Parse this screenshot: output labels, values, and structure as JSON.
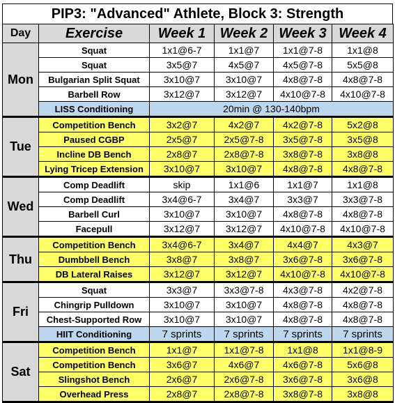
{
  "title": "PIP3: \"Advanced\" Athlete, Block 3: Strength",
  "headers": {
    "day": "Day",
    "exercise": "Exercise",
    "weeks": [
      "Week 1",
      "Week 2",
      "Week 3",
      "Week 4"
    ]
  },
  "colors": {
    "yellow_row": "#ffff66",
    "blue_row": "#bdd7ee",
    "header_gray": "#d9d9d9"
  },
  "days": [
    {
      "name": "Mon",
      "rows": [
        {
          "exercise": "Squat",
          "weeks": [
            "1x1@6-7",
            "1x1@7",
            "1x1@7-8",
            "1x1@8"
          ]
        },
        {
          "exercise": "Squat",
          "weeks": [
            "3x5@7",
            "4x5@7",
            "4x5@7-8",
            "5x5@8"
          ]
        },
        {
          "exercise": "Bulgarian Split Squat",
          "weeks": [
            "3x10@7",
            "3x10@7",
            "4x8@7-8",
            "4x8@7-8"
          ]
        },
        {
          "exercise": "Barbell Row",
          "weeks": [
            "3x12@7",
            "3x12@7",
            "4x10@7-8",
            "4x10@7-8"
          ]
        },
        {
          "exercise": "LISS Conditioning",
          "merged": "20min @ 130-140bpm",
          "style": "liss"
        }
      ]
    },
    {
      "name": "Tue",
      "rows": [
        {
          "exercise": "Competition Bench",
          "weeks": [
            "3x2@7",
            "4x2@7",
            "4x2@7-8",
            "5x2@8"
          ],
          "style": "yellow"
        },
        {
          "exercise": "Paused CGBP",
          "weeks": [
            "2x5@7",
            "2x5@7-8",
            "3x5@7-8",
            "3x5@8"
          ],
          "style": "yellow"
        },
        {
          "exercise": "Incline DB Bench",
          "weeks": [
            "2x8@7",
            "2x8@7-8",
            "3x8@7-8",
            "3x8@8"
          ],
          "style": "yellow"
        },
        {
          "exercise": "Lying Tricep Extension",
          "weeks": [
            "3x10@7",
            "3x10@7",
            "4x8@7-8",
            "4x8@7-8"
          ],
          "style": "yellow"
        }
      ]
    },
    {
      "name": "Wed",
      "rows": [
        {
          "exercise": "Comp Deadlift",
          "weeks": [
            "skip",
            "1x1@6",
            "1x1@7",
            "1x1@8"
          ]
        },
        {
          "exercise": "Comp Deadlift",
          "weeks": [
            "3x4@6-7",
            "3x4@7",
            "3x3@7",
            "3x3@7-8"
          ]
        },
        {
          "exercise": "Barbell Curl",
          "weeks": [
            "3x10@7",
            "3x10@7",
            "4x8@7-8",
            "4x8@7-8"
          ]
        },
        {
          "exercise": "Facepull",
          "weeks": [
            "3x12@7",
            "3x12@7",
            "4x10@7-8",
            "4x10@7-8"
          ]
        }
      ]
    },
    {
      "name": "Thu",
      "rows": [
        {
          "exercise": "Competition Bench",
          "weeks": [
            "3x4@6-7",
            "3x4@7",
            "4x4@7",
            "4x3@7"
          ],
          "style": "yellow"
        },
        {
          "exercise": "Dumbbell Bench",
          "weeks": [
            "3x8@7",
            "3x8@7",
            "3x6@7-8",
            "3x6@7-8"
          ],
          "style": "yellow"
        },
        {
          "exercise": "DB Lateral Raises",
          "weeks": [
            "3x12@7",
            "3x12@7",
            "4x10@7-8",
            "4x10@7-8"
          ],
          "style": "yellow"
        }
      ]
    },
    {
      "name": "Fri",
      "rows": [
        {
          "exercise": "Squat",
          "weeks": [
            "3x3@7",
            "3x3@7-8",
            "4x3@7-8",
            "4x2@7-8"
          ]
        },
        {
          "exercise": "Chingrip Pulldown",
          "weeks": [
            "3x10@7",
            "3x10@7",
            "4x8@7-8",
            "4x8@7-8"
          ]
        },
        {
          "exercise": "Chest-Supported Row",
          "weeks": [
            "3x10@7",
            "3x10@7",
            "4x8@7-8",
            "4x8@7-8"
          ]
        },
        {
          "exercise": "HIIT Conditioning",
          "weeks": [
            "7 sprints",
            "7 sprints",
            "7 sprints",
            "7 sprints"
          ],
          "style": "hiit"
        }
      ]
    },
    {
      "name": "Sat",
      "rows": [
        {
          "exercise": "Competition Bench",
          "weeks": [
            "1x1@7",
            "1x1@7-8",
            "1x1@8",
            "1x1@8-9"
          ],
          "style": "yellow"
        },
        {
          "exercise": "Competition Bench",
          "weeks": [
            "3x6@7",
            "4x6@7",
            "4x6@7-8",
            "5x6@8"
          ],
          "style": "yellow"
        },
        {
          "exercise": "Slingshot Bench",
          "weeks": [
            "2x6@7",
            "2x6@7-8",
            "3x6@7-8",
            "3x6@8"
          ],
          "style": "yellow"
        },
        {
          "exercise": "Overhead Press",
          "weeks": [
            "2x8@7",
            "2x8@7-8",
            "3x8@7-8",
            "3x8@8"
          ],
          "style": "yellow"
        }
      ]
    }
  ]
}
